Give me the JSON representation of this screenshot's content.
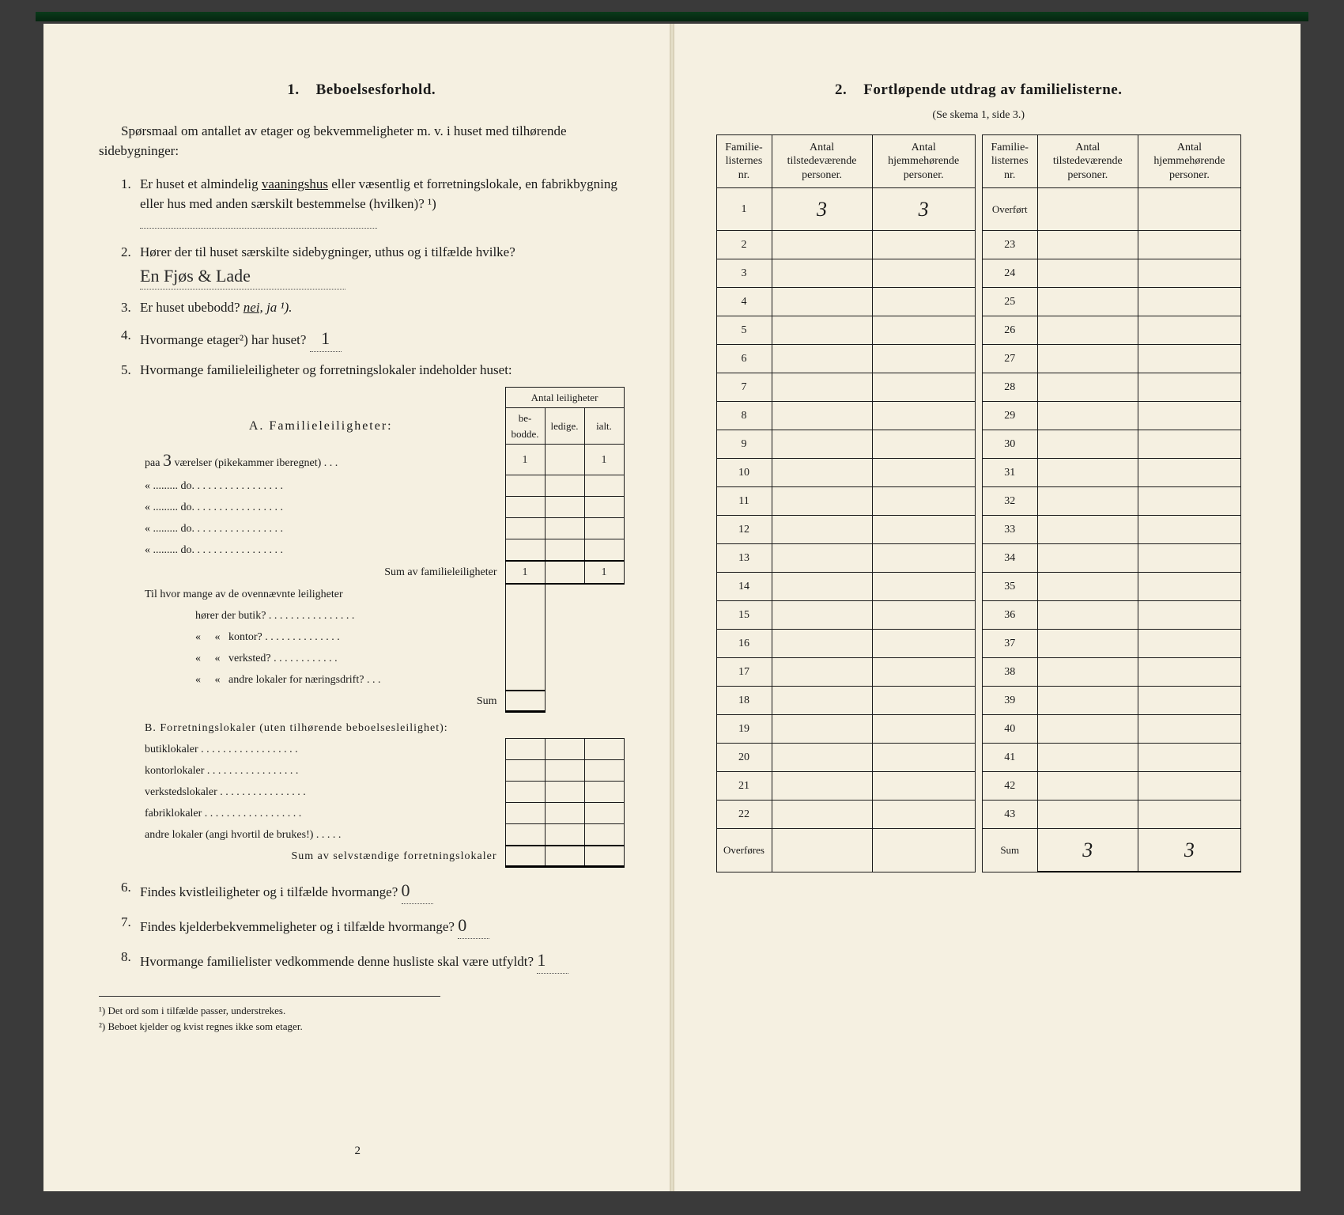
{
  "left": {
    "section_number": "1.",
    "section_title": "Beboelsesforhold.",
    "intro": "Spørsmaal om antallet av etager og bekvemmeligheter m. v. i huset med tilhørende sidebygninger:",
    "q1_num": "1.",
    "q1_a": "Er huset et almindelig ",
    "q1_underlined": "vaaningshus",
    "q1_b": " eller væsentlig et forretningslokale, en fabrikbygning eller hus med anden særskilt bestemmelse (hvilken)? ¹)",
    "q2_num": "2.",
    "q2_a": "Hører der til huset særskilte sidebygninger, uthus og i tilfælde hvilke?",
    "q2_hand": "En Fjøs & Lade",
    "q3_num": "3.",
    "q3_a": "Er huset ubebodd?",
    "q3_nei": "nei,",
    "q3_ja": "ja ¹).",
    "q4_num": "4.",
    "q4_a": "Hvormange etager²) har huset?",
    "q4_hand": "1",
    "q5_num": "5.",
    "q5_a": "Hvormange familieleiligheter og forretningslokaler indeholder huset:",
    "antal_header": "Antal leiligheter",
    "col_bebodde": "be-\nbodde.",
    "col_ledige": "ledige.",
    "col_ialt": "ialt.",
    "sectA_label": "A. Familieleiligheter:",
    "rowA1_label": "paa",
    "rowA1_hand": "3",
    "rowA1_rest": " værelser (pikekammer iberegnet) . . .",
    "rowA1_v1": "1",
    "rowA1_v3": "1",
    "rowA2": "« ......... do. . . . . . . . . . . . . . . . .",
    "rowA3": "« ......... do. . . . . . . . . . . . . . . . .",
    "rowA4": "« ......... do. . . . . . . . . . . . . . . . .",
    "rowA5": "« ......... do. . . . . . . . . . . . . . . . .",
    "sumA": "Sum av familieleiligheter",
    "sumA_v1": "1",
    "sumA_v3": "1",
    "tilhvor": "Til hvor mange av de ovennævnte leiligheter",
    "butik": "hører der butik? . . . . . . . . . . . . . . . .",
    "kontor": "«     «   kontor? . . . . . . . . . . . . . .",
    "verksted": "«     «   verksted? . . . . . . . . . . . .",
    "andre": "«     «   andre lokaler for næringsdrift? . . .",
    "sum_label": "Sum",
    "sectB_label": "B. Forretningslokaler (uten tilhørende beboelsesleilighet):",
    "b1": "butiklokaler . . . . . . . . . . . . . . . . . .",
    "b2": "kontorlokaler  . . . . . . . . . . . . . . . . .",
    "b3": "verkstedslokaler . . . . . . . . . . . . . . . .",
    "b4": "fabriklokaler . . . . . . . . . . . . . . . . . .",
    "b5": "andre lokaler (angi hvortil de brukes!) . . . . .",
    "sumB": "Sum av selvstændige forretningslokaler",
    "q6_num": "6.",
    "q6": "Findes kvistleiligheter og i tilfælde hvormange?",
    "q6_hand": "0",
    "q7_num": "7.",
    "q7": "Findes kjelderbekvemmeligheter og i tilfælde hvormange?",
    "q7_hand": "0",
    "q8_num": "8.",
    "q8": "Hvormange familielister vedkommende denne husliste skal være utfyldt?",
    "q8_hand": "1",
    "footnote1": "¹)  Det ord som i tilfælde passer, understrekes.",
    "footnote2": "²)  Beboet kjelder og kvist regnes ikke som etager.",
    "page_number": "2"
  },
  "right": {
    "section_number": "2.",
    "section_title": "Fortløpende utdrag av familielisterne.",
    "subtitle": "(Se skema 1, side 3.)",
    "th_nr": "Familie-\nlisternes\nnr.",
    "th_til": "Antal\ntilstedeværende\npersoner.",
    "th_hjem": "Antal\nhjemmehørende\npersoner.",
    "row1_til": "3",
    "row1_hjem": "3",
    "overfort": "Overført",
    "overfores": "Overføres",
    "sum": "Sum",
    "sum_til": "3",
    "sum_hjem": "3",
    "left_numbers": [
      "1",
      "2",
      "3",
      "4",
      "5",
      "6",
      "7",
      "8",
      "9",
      "10",
      "11",
      "12",
      "13",
      "14",
      "15",
      "16",
      "17",
      "18",
      "19",
      "20",
      "21",
      "22"
    ],
    "right_numbers": [
      "23",
      "24",
      "25",
      "26",
      "27",
      "28",
      "29",
      "30",
      "31",
      "32",
      "33",
      "34",
      "35",
      "36",
      "37",
      "38",
      "39",
      "40",
      "41",
      "42",
      "43"
    ]
  }
}
